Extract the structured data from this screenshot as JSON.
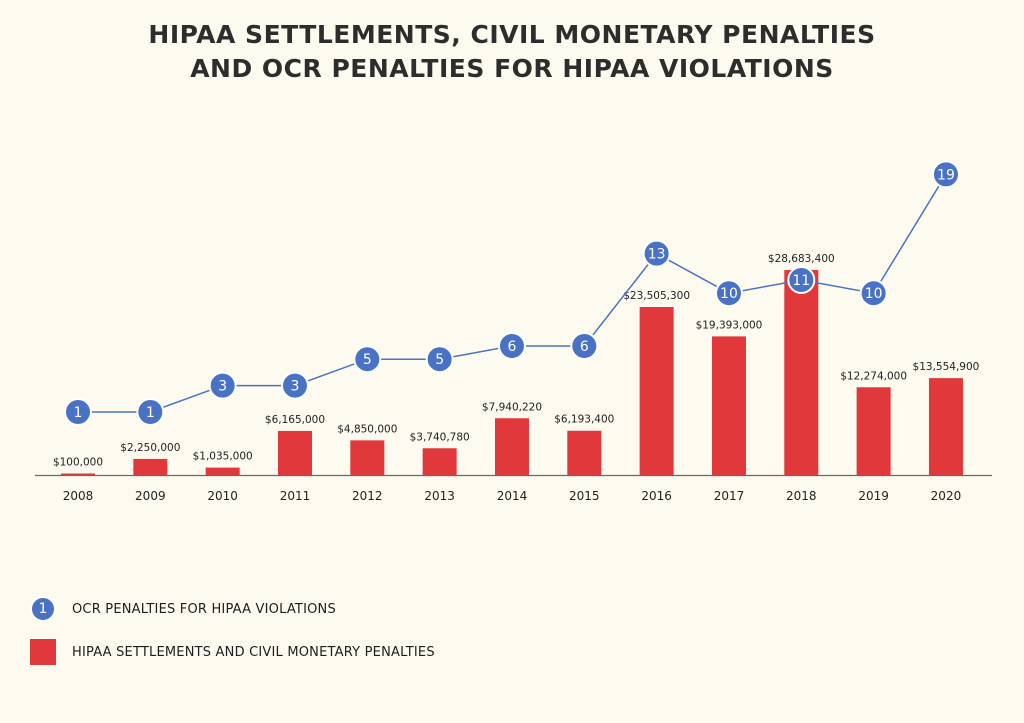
{
  "title_line1": "HIPAA SETTLEMENTS, CIVIL MONETARY PENALTIES",
  "title_line2": "AND OCR PENALTIES FOR HIPAA VIOLATIONS",
  "colors": {
    "bar": "#e0383b",
    "line": "#4a72c4",
    "axis": "#6a6a6a",
    "background": "#fdfaf0"
  },
  "legend": {
    "line_sample": "1",
    "line_label": "OCR PENALTIES FOR HIPAA VIOLATIONS",
    "bar_label": "HIPAA SETTLEMENTS AND CIVIL MONETARY PENALTIES"
  },
  "chart_data": {
    "type": "bar",
    "categories": [
      "2008",
      "2009",
      "2010",
      "2011",
      "2012",
      "2013",
      "2014",
      "2015",
      "2016",
      "2017",
      "2018",
      "2019",
      "2020"
    ],
    "series": [
      {
        "type": "bar",
        "values": [
          100000,
          2250000,
          1035000,
          6165000,
          4850000,
          3740780,
          7940220,
          6193400,
          23505300,
          19393000,
          28683400,
          12274000,
          13554900
        ],
        "labels": [
          "$100,000",
          "$2,250,000",
          "$1,035,000",
          "$6,165,000",
          "$4,850,000",
          "$3,740,780",
          "$7,940,220",
          "$6,193,400",
          "$23,505,300",
          "$19,393,000",
          "$28,683,400",
          "$12,274,000",
          "$13,554,900"
        ]
      },
      {
        "type": "line",
        "values": [
          1,
          1,
          3,
          3,
          5,
          5,
          6,
          6,
          13,
          10,
          11,
          10,
          19
        ]
      }
    ],
    "title": "HIPAA SETTLEMENTS, CIVIL MONETARY PENALTIES AND OCR PENALTIES FOR HIPAA VIOLATIONS",
    "xlabel": "",
    "ylabel": "",
    "grid": false,
    "legend_position": "bottom-left"
  }
}
